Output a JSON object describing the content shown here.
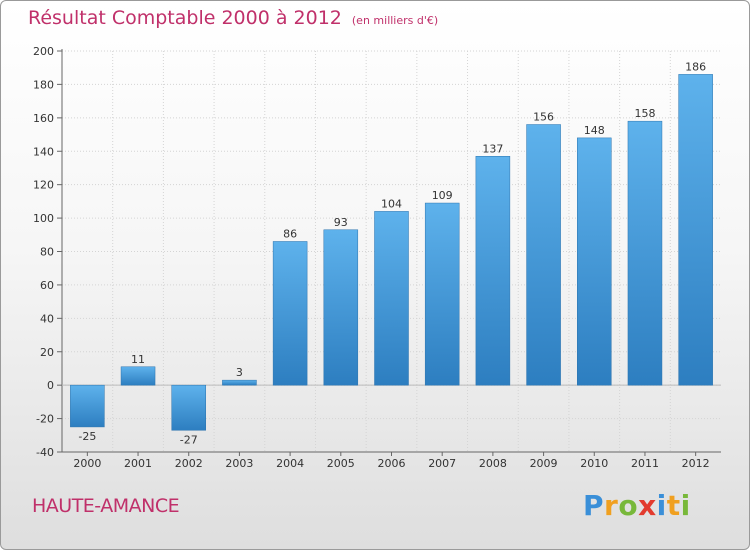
{
  "title": "Résultat Comptable 2000 à 2012",
  "unit_note": "(en milliers d'€)",
  "commune": "HAUTE-AMANCE",
  "brand": {
    "letters": [
      "P",
      "r",
      "o",
      "x",
      "i",
      "t",
      "i"
    ],
    "colors": [
      "#3a8fd8",
      "#f0a020",
      "#78b83a",
      "#e23b2e",
      "#3a8fd8",
      "#f0a020",
      "#78b83a"
    ]
  },
  "colors": {
    "accent": "#c0306a",
    "bar_top": "#5eb2ec",
    "bar_bottom": "#2d7ec0"
  },
  "chart_data": {
    "type": "bar",
    "title": "Résultat Comptable 2000 à 2012",
    "xlabel": "",
    "ylabel": "en milliers d'€",
    "categories": [
      "2000",
      "2001",
      "2002",
      "2003",
      "2004",
      "2005",
      "2006",
      "2007",
      "2008",
      "2009",
      "2010",
      "2011",
      "2012"
    ],
    "values": [
      -25,
      11,
      -27,
      3,
      86,
      93,
      104,
      109,
      137,
      156,
      148,
      158,
      186
    ],
    "ylim": [
      -40,
      200
    ],
    "yticks": [
      -40,
      -20,
      0,
      20,
      40,
      60,
      80,
      100,
      120,
      140,
      160,
      180,
      200
    ],
    "grid": true
  }
}
